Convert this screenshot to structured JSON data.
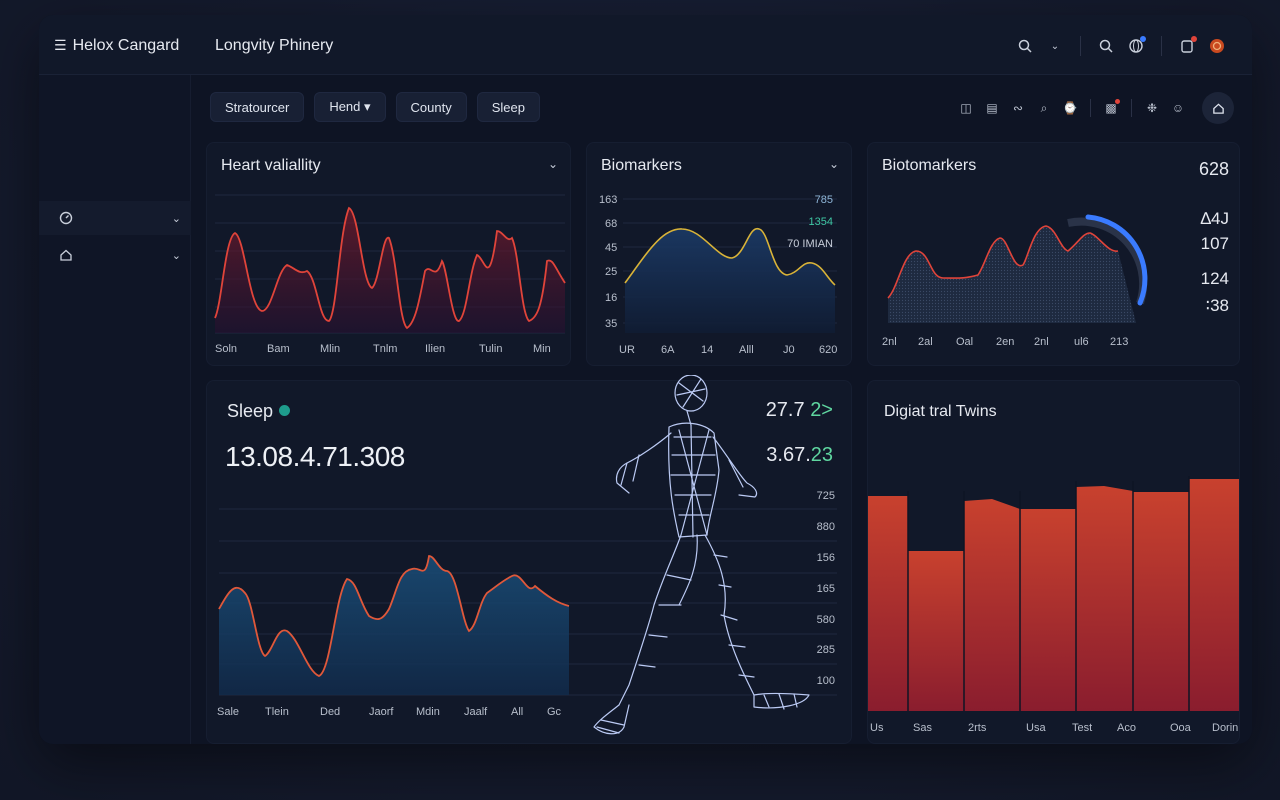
{
  "app": {
    "brand": "Helox Cangard",
    "title": "Longvity Phinery"
  },
  "tabs": [
    "Stratourcer",
    "Hend ▾",
    "County",
    "Sleep"
  ],
  "cards": {
    "heart": {
      "title": "Heart valiallity",
      "x_labels": [
        "Soln",
        "Bam",
        "Mlin",
        "Tnlm",
        "Ilien",
        "Tulin",
        "Min"
      ]
    },
    "biomarkers": {
      "title": "Biomarkers",
      "y_labels": [
        "163",
        "68",
        "45",
        "25",
        "16",
        "35"
      ],
      "x_labels": [
        "UR",
        "6A",
        "14",
        "Alll",
        "J0",
        "620"
      ],
      "legend": [
        "785",
        "1354",
        "70 IMIAN"
      ]
    },
    "biotomarkers": {
      "title": "Biotomarkers",
      "top_value": "628",
      "side_values": [
        "∆4J",
        "107",
        "124",
        "∶38"
      ],
      "x_labels": [
        "2nl",
        "2al",
        "Oal",
        "2en",
        "2nl",
        "ul6",
        "213"
      ]
    },
    "sleep": {
      "title": "Sleep",
      "big_value": "13.08.4.71.308",
      "stat1": "27.7",
      "stat1_hl": "2>",
      "stat2": "3.67.",
      "stat2_hl": "23",
      "y_labels": [
        "725",
        "880",
        "156",
        "165",
        "580",
        "285",
        "100"
      ],
      "x_labels": [
        "Sale",
        "Tlein",
        "Ded",
        "Jaorf",
        "Mdin",
        "Jaalf",
        "All",
        "Gc"
      ]
    },
    "twins": {
      "title": "Digiat tral Twins",
      "x_labels": [
        "Us",
        "Sas",
        "2rts",
        "Usa",
        "Test",
        "Aco",
        "Ooa",
        "Dorin"
      ]
    }
  },
  "colors": {
    "accent_red": "#e0443a",
    "accent_yellow": "#d9b338",
    "accent_blue": "#3a7bff",
    "accent_green": "#5fd6a0"
  }
}
